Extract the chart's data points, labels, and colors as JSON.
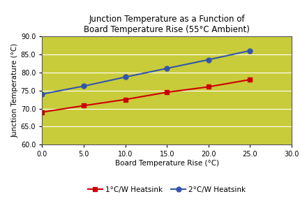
{
  "title": "Junction Temperature as a Function of\nBoard Temperature Rise (55°C Ambient)",
  "xlabel": "Board Temperature Rise (°C)",
  "ylabel": "Junction Temperature (°C)",
  "xlim": [
    0.0,
    30.0
  ],
  "ylim": [
    60.0,
    90.0
  ],
  "xticks": [
    0.0,
    5.0,
    10.0,
    15.0,
    20.0,
    25.0,
    30.0
  ],
  "yticks": [
    60.0,
    65.0,
    70.0,
    75.0,
    80.0,
    85.0,
    90.0
  ],
  "series": [
    {
      "label": "1°C/W Heatsink",
      "x": [
        0.0,
        5.0,
        10.0,
        15.0,
        20.0,
        25.0
      ],
      "y": [
        69.0,
        70.8,
        72.5,
        74.5,
        76.0,
        78.0
      ],
      "color": "#cc0000",
      "marker": "s",
      "linewidth": 1.5,
      "markersize": 5
    },
    {
      "label": "2°C/W Heatsink",
      "x": [
        0.0,
        5.0,
        10.0,
        15.0,
        20.0,
        25.0
      ],
      "y": [
        74.0,
        76.2,
        78.7,
        81.1,
        83.5,
        86.0
      ],
      "color": "#3355aa",
      "marker": "o",
      "linewidth": 1.5,
      "markersize": 5
    }
  ],
  "background_color": "#c8cc3a",
  "figure_bg": "#ffffff",
  "title_fontsize": 8.5,
  "axis_label_fontsize": 7.5,
  "tick_fontsize": 7,
  "legend_fontsize": 7.5,
  "grid_color": "#ffffff",
  "grid_linewidth": 0.8
}
